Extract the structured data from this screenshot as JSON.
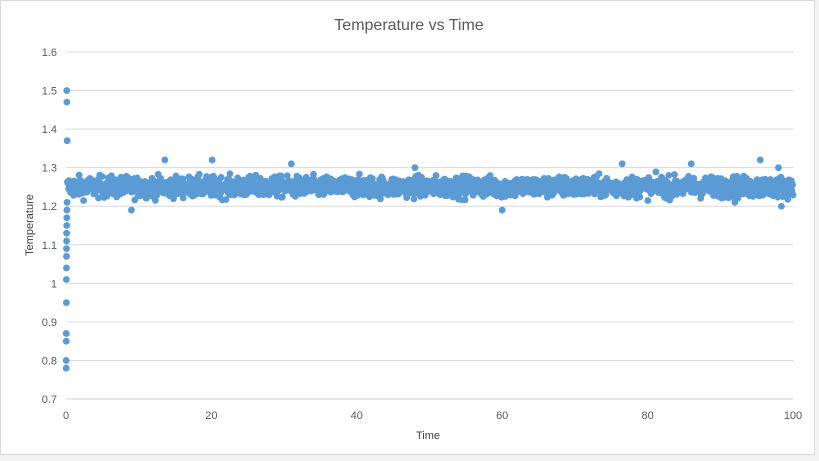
{
  "chart_data": {
    "type": "scatter",
    "title": "Temperature vs Time",
    "xlabel": "Time",
    "ylabel": "Temperature",
    "xlim": [
      0,
      100
    ],
    "ylim": [
      0.7,
      1.6
    ],
    "x_ticks": [
      "0",
      "20",
      "40",
      "60",
      "80",
      "100"
    ],
    "y_ticks": [
      "0.7",
      "0.8",
      "0.9",
      "1",
      "1.1",
      "1.2",
      "1.3",
      "1.4",
      "1.5",
      "1.6"
    ],
    "grid": "horizontal",
    "legend": "none",
    "marker_color": "#5b9bd5",
    "gridline_color": "#d9d9d9",
    "series": [
      {
        "initial_points": [
          [
            0.02,
            0.78
          ],
          [
            0.02,
            0.8
          ],
          [
            0.03,
            0.85
          ],
          [
            0.03,
            0.87
          ],
          [
            0.05,
            0.95
          ],
          [
            0.05,
            1.01
          ],
          [
            0.06,
            1.04
          ],
          [
            0.07,
            1.07
          ],
          [
            0.07,
            1.09
          ],
          [
            0.08,
            1.11
          ],
          [
            0.09,
            1.13
          ],
          [
            0.1,
            1.15
          ],
          [
            0.11,
            1.17
          ],
          [
            0.12,
            1.19
          ],
          [
            0.14,
            1.21
          ],
          [
            0.16,
            1.37
          ],
          [
            0.12,
            1.47
          ],
          [
            0.1,
            1.5
          ]
        ],
        "steady_state": {
          "x_start": 0.2,
          "x_end": 100,
          "mean": 1.25,
          "typical_range": [
            1.21,
            1.29
          ],
          "max": 1.33,
          "min": 1.19
        },
        "spikes": [
          [
            13.6,
            1.32
          ],
          [
            20.1,
            1.32
          ],
          [
            9.0,
            1.19
          ],
          [
            60.0,
            1.19
          ],
          [
            76.5,
            1.31
          ],
          [
            86.0,
            1.31
          ],
          [
            95.5,
            1.32
          ],
          [
            98.0,
            1.3
          ],
          [
            98.4,
            1.2
          ],
          [
            92.0,
            1.21
          ],
          [
            48.0,
            1.3
          ],
          [
            31.0,
            1.31
          ]
        ]
      }
    ]
  }
}
